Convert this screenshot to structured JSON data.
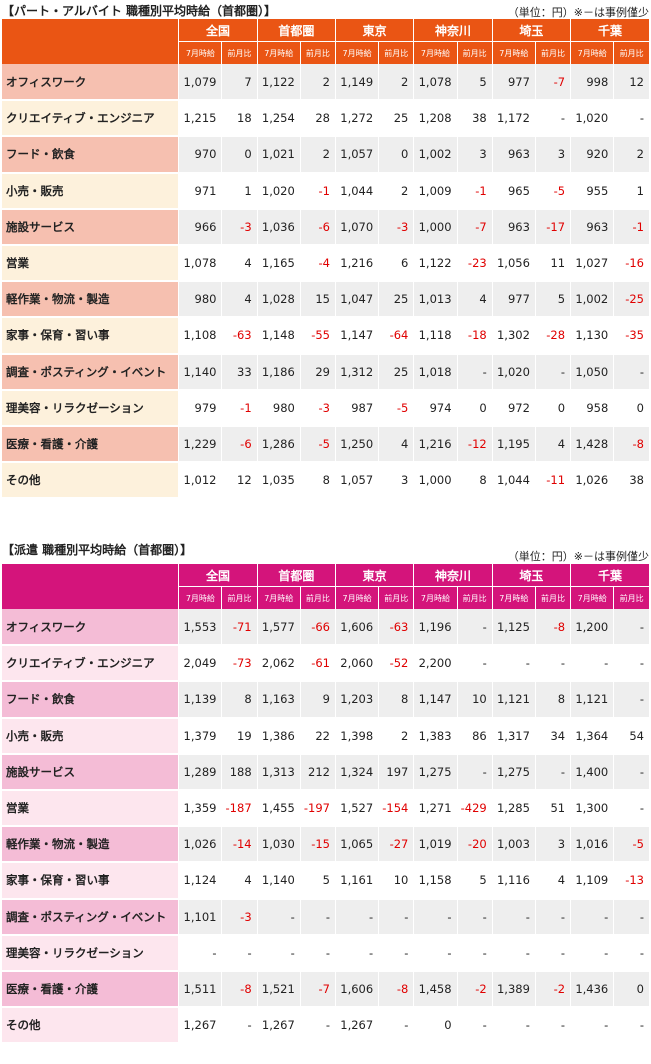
{
  "sections": [
    {
      "id": "part",
      "title": "【パート・アルバイト 職種別平均時給（首都圏）】",
      "unit_note": "（単位：円）※－は事例僅少",
      "regions": [
        "全国",
        "首都圏",
        "東京",
        "神奈川",
        "埼玉",
        "千葉"
      ],
      "sub_headers": [
        "7月時給",
        "前月比"
      ],
      "rows": [
        {
          "label": "オフィスワーク",
          "values": [
            "1,079",
            "7",
            "1,122",
            "2",
            "1,149",
            "2",
            "1,078",
            "5",
            "977",
            "-7",
            "998",
            "12"
          ]
        },
        {
          "label": "クリエイティブ・エンジニア",
          "values": [
            "1,215",
            "18",
            "1,254",
            "28",
            "1,272",
            "25",
            "1,208",
            "38",
            "1,172",
            "-",
            "1,020",
            "-"
          ]
        },
        {
          "label": "フード・飲食",
          "values": [
            "970",
            "0",
            "1,021",
            "2",
            "1,057",
            "0",
            "1,002",
            "3",
            "963",
            "3",
            "920",
            "2"
          ]
        },
        {
          "label": "小売・販売",
          "values": [
            "971",
            "1",
            "1,020",
            "-1",
            "1,044",
            "2",
            "1,009",
            "-1",
            "965",
            "-5",
            "955",
            "1"
          ]
        },
        {
          "label": "施設サービス",
          "values": [
            "966",
            "-3",
            "1,036",
            "-6",
            "1,070",
            "-3",
            "1,000",
            "-7",
            "963",
            "-17",
            "963",
            "-1"
          ]
        },
        {
          "label": "営業",
          "values": [
            "1,078",
            "4",
            "1,165",
            "-4",
            "1,216",
            "6",
            "1,122",
            "-23",
            "1,056",
            "11",
            "1,027",
            "-16"
          ]
        },
        {
          "label": "軽作業・物流・製造",
          "values": [
            "980",
            "4",
            "1,028",
            "15",
            "1,047",
            "25",
            "1,013",
            "4",
            "977",
            "5",
            "1,002",
            "-25"
          ]
        },
        {
          "label": "家事・保育・習い事",
          "values": [
            "1,108",
            "-63",
            "1,148",
            "-55",
            "1,147",
            "-64",
            "1,118",
            "-18",
            "1,302",
            "-28",
            "1,130",
            "-35"
          ]
        },
        {
          "label": "調査・ポスティング・イベント",
          "values": [
            "1,140",
            "33",
            "1,186",
            "29",
            "1,312",
            "25",
            "1,018",
            "-",
            "1,020",
            "-",
            "1,050",
            "-"
          ]
        },
        {
          "label": "理美容・リラクゼーション",
          "values": [
            "979",
            "-1",
            "980",
            "-3",
            "987",
            "-5",
            "974",
            "0",
            "972",
            "0",
            "958",
            "0"
          ]
        },
        {
          "label": "医療・看護・介護",
          "values": [
            "1,229",
            "-6",
            "1,286",
            "-5",
            "1,250",
            "4",
            "1,216",
            "-12",
            "1,195",
            "4",
            "1,428",
            "-8"
          ]
        },
        {
          "label": "その他",
          "values": [
            "1,012",
            "12",
            "1,035",
            "8",
            "1,057",
            "3",
            "1,000",
            "8",
            "1,044",
            "-11",
            "1,026",
            "38"
          ]
        }
      ]
    },
    {
      "id": "haken",
      "title": "【派遣 職種別平均時給（首都圏）】",
      "unit_note": "（単位：円）※－は事例僅少",
      "regions": [
        "全国",
        "首都圏",
        "東京",
        "神奈川",
        "埼玉",
        "千葉"
      ],
      "sub_headers": [
        "7月時給",
        "前月比"
      ],
      "rows": [
        {
          "label": "オフィスワーク",
          "values": [
            "1,553",
            "-71",
            "1,577",
            "-66",
            "1,606",
            "-63",
            "1,196",
            "-",
            "1,125",
            "-8",
            "1,200",
            "-"
          ]
        },
        {
          "label": "クリエイティブ・エンジニア",
          "values": [
            "2,049",
            "-73",
            "2,062",
            "-61",
            "2,060",
            "-52",
            "2,200",
            "-",
            "-",
            "-",
            "-",
            "-"
          ]
        },
        {
          "label": "フード・飲食",
          "values": [
            "1,139",
            "8",
            "1,163",
            "9",
            "1,203",
            "8",
            "1,147",
            "10",
            "1,121",
            "8",
            "1,121",
            "-"
          ]
        },
        {
          "label": "小売・販売",
          "values": [
            "1,379",
            "19",
            "1,386",
            "22",
            "1,398",
            "2",
            "1,383",
            "86",
            "1,317",
            "34",
            "1,364",
            "54"
          ]
        },
        {
          "label": "施設サービス",
          "values": [
            "1,289",
            "188",
            "1,313",
            "212",
            "1,324",
            "197",
            "1,275",
            "-",
            "1,275",
            "-",
            "1,400",
            "-"
          ]
        },
        {
          "label": "営業",
          "values": [
            "1,359",
            "-187",
            "1,455",
            "-197",
            "1,527",
            "-154",
            "1,271",
            "-429",
            "1,285",
            "51",
            "1,300",
            "-"
          ]
        },
        {
          "label": "軽作業・物流・製造",
          "values": [
            "1,026",
            "-14",
            "1,030",
            "-15",
            "1,065",
            "-27",
            "1,019",
            "-20",
            "1,003",
            "3",
            "1,016",
            "-5"
          ]
        },
        {
          "label": "家事・保育・習い事",
          "values": [
            "1,124",
            "4",
            "1,140",
            "5",
            "1,161",
            "10",
            "1,158",
            "5",
            "1,116",
            "4",
            "1,109",
            "-13"
          ]
        },
        {
          "label": "調査・ポスティング・イベント",
          "values": [
            "1,101",
            "-3",
            "-",
            "-",
            "-",
            "-",
            "-",
            "-",
            "-",
            "-",
            "-",
            "-"
          ]
        },
        {
          "label": "理美容・リラクゼーション",
          "values": [
            "-",
            "-",
            "-",
            "-",
            "-",
            "-",
            "-",
            "-",
            "-",
            "-",
            "-",
            "-"
          ]
        },
        {
          "label": "医療・看護・介護",
          "values": [
            "1,511",
            "-8",
            "1,521",
            "-7",
            "1,606",
            "-8",
            "1,458",
            "-2",
            "1,389",
            "-2",
            "1,436",
            "0"
          ]
        },
        {
          "label": "その他",
          "values": [
            "1,267",
            "-",
            "1,267",
            "-",
            "1,267",
            "-",
            "0",
            "-",
            "-",
            "-",
            "-",
            "-"
          ]
        }
      ]
    }
  ]
}
